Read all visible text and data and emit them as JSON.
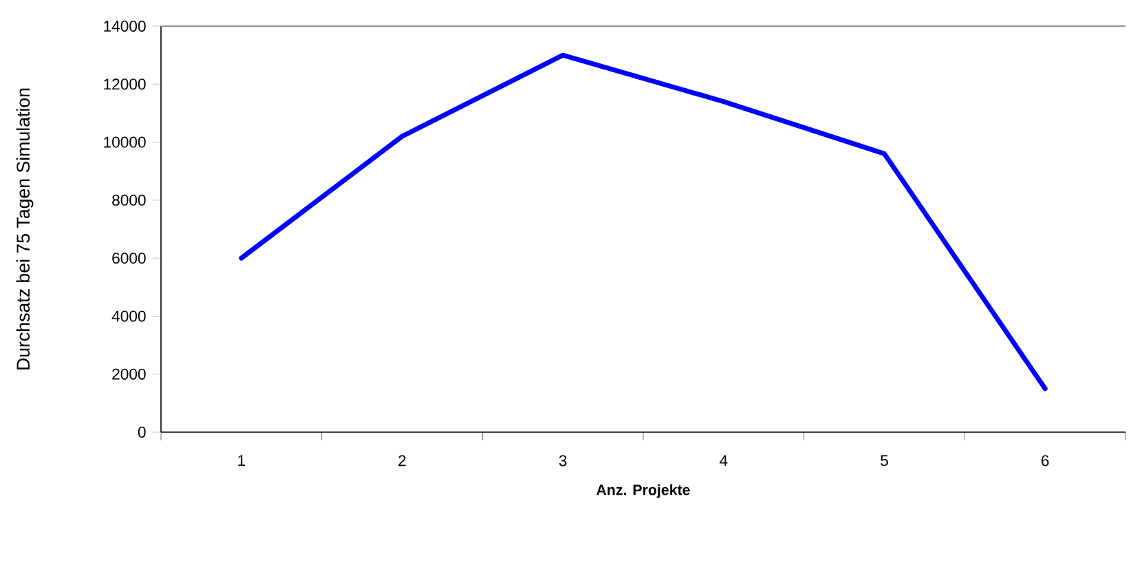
{
  "chart_data": {
    "type": "line",
    "xlabel": "Anz. Projekte",
    "ylabel": "Durchsatz bei 75 Tagen Simulation",
    "categories": [
      "1",
      "2",
      "3",
      "4",
      "5",
      "6"
    ],
    "series": [
      {
        "color": "#0000ff",
        "values": [
          6000,
          10200,
          13000,
          11400,
          9600,
          1500
        ]
      }
    ],
    "ylim": [
      0,
      14000
    ],
    "yticks": [
      0,
      2000,
      4000,
      6000,
      8000,
      10000,
      12000,
      14000
    ],
    "grid": false,
    "marker": "none",
    "line_style": "solid"
  }
}
